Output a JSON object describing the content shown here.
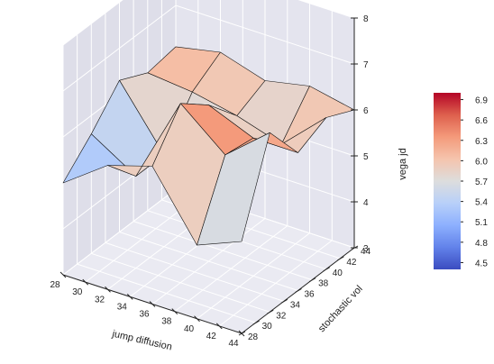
{
  "chart_data": {
    "type": "surface3d",
    "title": "",
    "xlabel": "jump diffusion",
    "ylabel": "stochastic vol",
    "zlabel": "vega jd",
    "x": [
      28,
      32,
      36,
      40,
      44
    ],
    "y": [
      28,
      32,
      36,
      40,
      44
    ],
    "z": [
      [
        5.0,
        5.6,
        6.3,
        6.0,
        6.1
      ],
      [
        5.7,
        5.0,
        5.0,
        5.9,
        6.3
      ],
      [
        6.0,
        6.9,
        6.4,
        5.7,
        6.0
      ],
      [
        4.6,
        6.1,
        6.0,
        5.4,
        6.2
      ],
      [
        5.0,
        6.9,
        6.0,
        6.3,
        6.0
      ]
    ],
    "xticks": [
      28,
      30,
      32,
      34,
      36,
      38,
      40,
      42,
      44
    ],
    "yticks": [
      28,
      30,
      32,
      34,
      36,
      38,
      40,
      42,
      44
    ],
    "zticks": [
      3,
      4,
      5,
      6,
      7,
      8
    ],
    "xlim": [
      28,
      44
    ],
    "ylim": [
      28,
      44
    ],
    "zlim": [
      3,
      8
    ],
    "colormap": "coolwarm",
    "colorbar": {
      "ticks": [
        4.5,
        4.8,
        5.1,
        5.4,
        5.7,
        6.0,
        6.3,
        6.6,
        6.9
      ],
      "min": 4.4,
      "max": 7.0,
      "placement": "right"
    },
    "grid": true,
    "background": "#eaeaf2"
  }
}
